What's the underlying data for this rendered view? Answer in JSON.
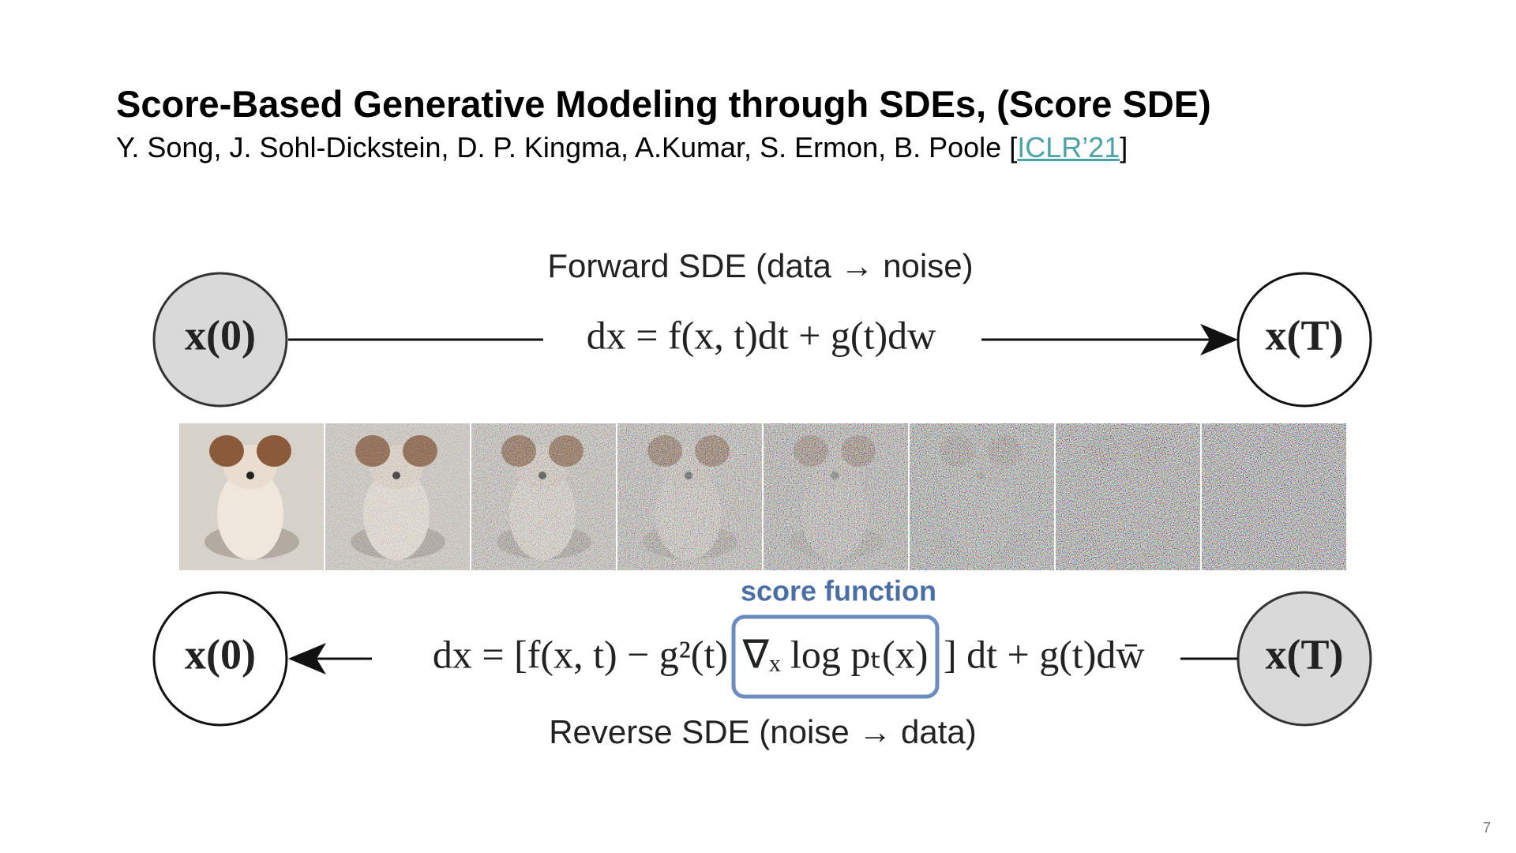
{
  "header": {
    "title": "Score-Based Generative Modeling through SDEs, (Score SDE)",
    "authors": "Y. Song, J. Sohl-Dickstein, D. P. Kingma, A.Kumar, S. Ermon, B. Poole [",
    "venue_link": "ICLR’21",
    "authors_end": "]"
  },
  "diagram": {
    "forward_label": "Forward SDE (data → noise)",
    "forward_equation": "dx = f(x, t)dt + g(t)dw",
    "forward_nodes": [
      "x(0)",
      "x(T)"
    ],
    "score_label": "score function",
    "reverse_equation": [
      "dx = [f(x, t) − g²(t)",
      "∇ₓ log pₜ(x)",
      "] dt + g(t)dw̄"
    ],
    "reverse_nodes": [
      "x(0)",
      "x(T)"
    ],
    "reverse_label": "Reverse SDE (noise → data)"
  },
  "page_number": 7
}
